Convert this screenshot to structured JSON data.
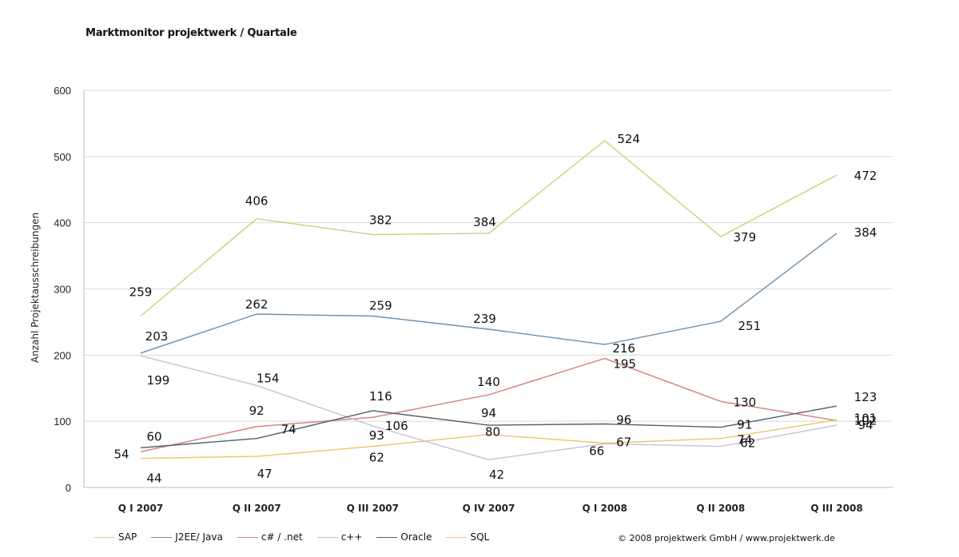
{
  "chart_data": {
    "type": "line",
    "title": "Marktmonitor projektwerk / Quartale",
    "ylabel": "Anzahl Projektausschreibungen",
    "xlabel": "",
    "categories": [
      "Q I 2007",
      "Q II 2007",
      "Q III 2007",
      "Q IV 2007",
      "Q I 2008",
      "Q II 2008",
      "Q III 2008"
    ],
    "ylim": [
      0,
      600
    ],
    "yticks": [
      "0",
      "100",
      "200",
      "300",
      "400",
      "500",
      "600"
    ],
    "grid": "horizontal",
    "legend_position": "bottom",
    "series": [
      {
        "name": "SAP",
        "color": "#c8d27a",
        "values": [
          259,
          406,
          382,
          384,
          524,
          379,
          472
        ],
        "labels": [
          "259",
          "406",
          "382",
          "384",
          "524",
          "379",
          "472"
        ]
      },
      {
        "name": "J2EE/ Java",
        "color": "#6a8fad",
        "values": [
          203,
          262,
          259,
          239,
          216,
          251,
          384
        ],
        "labels": [
          "203",
          "262",
          "259",
          "239",
          "216",
          "251",
          "384"
        ]
      },
      {
        "name": "c# / .net",
        "color": "#d97a7a",
        "values": [
          54,
          92,
          106,
          140,
          195,
          130,
          101
        ],
        "labels": [
          "54",
          "92",
          "106",
          "140",
          "195",
          "130",
          "101"
        ]
      },
      {
        "name": "c++",
        "color": "#c9bfd6",
        "values": [
          199,
          154,
          93,
          42,
          66,
          62,
          94
        ],
        "labels": [
          "199",
          "154",
          "93",
          "42",
          "66",
          "62",
          "94"
        ]
      },
      {
        "name": "Oracle",
        "color": "#4f5f70",
        "values": [
          60,
          74,
          116,
          94,
          96,
          91,
          123
        ],
        "labels": [
          "60",
          "74",
          "116",
          "94",
          "96",
          "91",
          "123"
        ]
      },
      {
        "name": "SQL",
        "color": "#e8c86a",
        "values": [
          44,
          47,
          62,
          80,
          67,
          74,
          102
        ],
        "labels": [
          "44",
          "47",
          "62",
          "80",
          "67",
          "74",
          "102"
        ]
      }
    ]
  },
  "footer": {
    "copyright": "© 2008 projektwerk GmbH / www.projektwerk.de"
  }
}
